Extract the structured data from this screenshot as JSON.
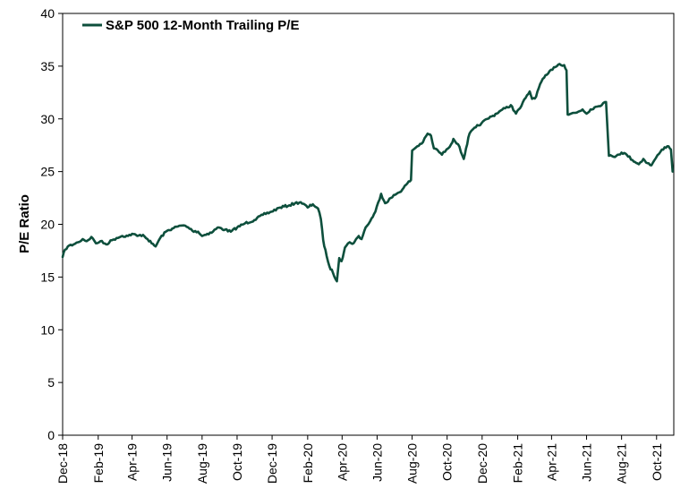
{
  "chart_data": {
    "type": "line",
    "title": "",
    "xlabel": "",
    "ylabel": "P/E Ratio",
    "ylim": [
      0,
      40
    ],
    "yticks": [
      0,
      5,
      10,
      15,
      20,
      25,
      30,
      35,
      40
    ],
    "xlim": [
      "2018-12-01",
      "2021-10-31"
    ],
    "xtick_labels": [
      {
        "date": "2018-12-01",
        "label": "Dec-18"
      },
      {
        "date": "2019-02-01",
        "label": "Feb-19"
      },
      {
        "date": "2019-04-01",
        "label": "Apr-19"
      },
      {
        "date": "2019-06-01",
        "label": "Jun-19"
      },
      {
        "date": "2019-08-01",
        "label": "Aug-19"
      },
      {
        "date": "2019-10-01",
        "label": "Oct-19"
      },
      {
        "date": "2019-12-01",
        "label": "Dec-19"
      },
      {
        "date": "2020-02-01",
        "label": "Feb-20"
      },
      {
        "date": "2020-04-01",
        "label": "Apr-20"
      },
      {
        "date": "2020-06-01",
        "label": "Jun-20"
      },
      {
        "date": "2020-08-01",
        "label": "Aug-20"
      },
      {
        "date": "2020-10-01",
        "label": "Oct-20"
      },
      {
        "date": "2020-12-01",
        "label": "Dec-20"
      },
      {
        "date": "2021-02-01",
        "label": "Feb-21"
      },
      {
        "date": "2021-04-01",
        "label": "Apr-21"
      },
      {
        "date": "2021-06-01",
        "label": "Jun-21"
      },
      {
        "date": "2021-08-01",
        "label": "Aug-21"
      },
      {
        "date": "2021-10-01",
        "label": "Oct-21"
      }
    ],
    "grid": false,
    "legend_position": "top-left",
    "series": [
      {
        "name": "S&P 500 12-Month Trailing P/E",
        "color": "#0d4f3c",
        "points": [
          [
            "2018-12-01",
            16.9
          ],
          [
            "2018-12-05",
            17.6
          ],
          [
            "2018-12-10",
            17.9
          ],
          [
            "2018-12-20",
            18.1
          ],
          [
            "2018-12-28",
            18.3
          ],
          [
            "2019-01-05",
            18.6
          ],
          [
            "2019-01-12",
            18.4
          ],
          [
            "2019-01-20",
            18.8
          ],
          [
            "2019-01-28",
            18.2
          ],
          [
            "2019-02-05",
            18.4
          ],
          [
            "2019-02-15",
            18.1
          ],
          [
            "2019-02-25",
            18.5
          ],
          [
            "2019-03-05",
            18.7
          ],
          [
            "2019-03-15",
            18.9
          ],
          [
            "2019-03-25",
            18.9
          ],
          [
            "2019-04-01",
            19.1
          ],
          [
            "2019-04-10",
            18.9
          ],
          [
            "2019-04-20",
            19.0
          ],
          [
            "2019-04-28",
            18.6
          ],
          [
            "2019-05-05",
            18.2
          ],
          [
            "2019-05-12",
            17.9
          ],
          [
            "2019-05-20",
            18.7
          ],
          [
            "2019-05-30",
            19.3
          ],
          [
            "2019-06-10",
            19.6
          ],
          [
            "2019-06-20",
            19.8
          ],
          [
            "2019-06-30",
            19.9
          ],
          [
            "2019-07-08",
            19.7
          ],
          [
            "2019-07-15",
            19.4
          ],
          [
            "2019-07-25",
            19.3
          ],
          [
            "2019-08-01",
            18.9
          ],
          [
            "2019-08-10",
            19.1
          ],
          [
            "2019-08-20",
            19.3
          ],
          [
            "2019-08-28",
            19.7
          ],
          [
            "2019-09-10",
            19.5
          ],
          [
            "2019-09-20",
            19.3
          ],
          [
            "2019-10-01",
            19.7
          ],
          [
            "2019-10-15",
            20.1
          ],
          [
            "2019-10-31",
            20.4
          ],
          [
            "2019-11-15",
            20.9
          ],
          [
            "2019-11-30",
            21.2
          ],
          [
            "2019-12-15",
            21.6
          ],
          [
            "2019-12-31",
            21.8
          ],
          [
            "2020-01-10",
            22.0
          ],
          [
            "2020-01-20",
            22.1
          ],
          [
            "2020-02-01",
            21.6
          ],
          [
            "2020-02-10",
            21.9
          ],
          [
            "2020-02-19",
            21.5
          ],
          [
            "2020-02-24",
            20.5
          ],
          [
            "2020-02-28",
            18.5
          ],
          [
            "2020-03-05",
            17.0
          ],
          [
            "2020-03-10",
            16.0
          ],
          [
            "2020-03-16",
            15.4
          ],
          [
            "2020-03-23",
            14.6
          ],
          [
            "2020-03-27",
            16.8
          ],
          [
            "2020-03-31",
            16.5
          ],
          [
            "2020-04-06",
            17.8
          ],
          [
            "2020-04-14",
            18.3
          ],
          [
            "2020-04-21",
            18.2
          ],
          [
            "2020-04-30",
            18.9
          ],
          [
            "2020-05-05",
            18.6
          ],
          [
            "2020-05-12",
            19.7
          ],
          [
            "2020-05-20",
            20.3
          ],
          [
            "2020-05-29",
            21.2
          ],
          [
            "2020-06-08",
            22.9
          ],
          [
            "2020-06-15",
            22.0
          ],
          [
            "2020-06-25",
            22.5
          ],
          [
            "2020-07-05",
            22.9
          ],
          [
            "2020-07-15",
            23.3
          ],
          [
            "2020-07-24",
            23.9
          ],
          [
            "2020-07-30",
            24.2
          ],
          [
            "2020-08-01",
            27.0
          ],
          [
            "2020-08-10",
            27.4
          ],
          [
            "2020-08-20",
            27.8
          ],
          [
            "2020-08-28",
            28.6
          ],
          [
            "2020-09-03",
            28.4
          ],
          [
            "2020-09-08",
            27.2
          ],
          [
            "2020-09-15",
            27.0
          ],
          [
            "2020-09-22",
            26.6
          ],
          [
            "2020-09-30",
            27.1
          ],
          [
            "2020-10-08",
            27.6
          ],
          [
            "2020-10-12",
            28.1
          ],
          [
            "2020-10-20",
            27.6
          ],
          [
            "2020-10-30",
            26.2
          ],
          [
            "2020-11-03",
            27.2
          ],
          [
            "2020-11-09",
            28.6
          ],
          [
            "2020-11-20",
            29.2
          ],
          [
            "2020-11-30",
            29.6
          ],
          [
            "2020-12-10",
            30.0
          ],
          [
            "2020-12-20",
            30.3
          ],
          [
            "2020-12-31",
            30.7
          ],
          [
            "2021-01-10",
            31.0
          ],
          [
            "2021-01-20",
            31.3
          ],
          [
            "2021-01-29",
            30.5
          ],
          [
            "2021-02-05",
            31.0
          ],
          [
            "2021-02-15",
            32.0
          ],
          [
            "2021-02-22",
            32.6
          ],
          [
            "2021-02-26",
            31.9
          ],
          [
            "2021-03-05",
            32.1
          ],
          [
            "2021-03-12",
            33.3
          ],
          [
            "2021-03-19",
            33.9
          ],
          [
            "2021-03-26",
            34.3
          ],
          [
            "2021-04-05",
            34.9
          ],
          [
            "2021-04-15",
            35.2
          ],
          [
            "2021-04-23",
            35.1
          ],
          [
            "2021-04-27",
            34.6
          ],
          [
            "2021-04-29",
            30.4
          ],
          [
            "2021-05-05",
            30.5
          ],
          [
            "2021-05-15",
            30.6
          ],
          [
            "2021-05-25",
            30.9
          ],
          [
            "2021-06-01",
            30.5
          ],
          [
            "2021-06-08",
            30.9
          ],
          [
            "2021-06-15",
            31.1
          ],
          [
            "2021-06-22",
            31.2
          ],
          [
            "2021-06-30",
            31.5
          ],
          [
            "2021-07-05",
            31.6
          ],
          [
            "2021-07-10",
            26.5
          ],
          [
            "2021-07-18",
            26.4
          ],
          [
            "2021-07-25",
            26.6
          ],
          [
            "2021-08-01",
            26.8
          ],
          [
            "2021-08-10",
            26.6
          ],
          [
            "2021-08-20",
            26.1
          ],
          [
            "2021-08-31",
            25.7
          ],
          [
            "2021-09-08",
            26.2
          ],
          [
            "2021-09-15",
            25.8
          ],
          [
            "2021-09-22",
            25.6
          ],
          [
            "2021-09-30",
            26.3
          ],
          [
            "2021-10-08",
            26.9
          ],
          [
            "2021-10-15",
            27.3
          ],
          [
            "2021-10-22",
            27.4
          ],
          [
            "2021-10-26",
            27.1
          ],
          [
            "2021-10-29",
            25.0
          ]
        ]
      }
    ]
  }
}
